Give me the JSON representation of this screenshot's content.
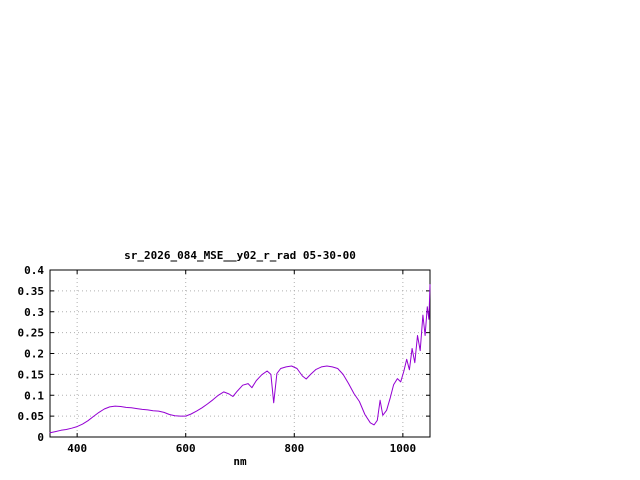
{
  "window": {
    "background": "#ffffff"
  },
  "chart_data": {
    "type": "line",
    "title": "sr_2026_084_MSE__y02_r_rad 05-30-00",
    "xlabel": "nm",
    "ylabel": "",
    "xlim": [
      350,
      1050
    ],
    "ylim": [
      0,
      0.4
    ],
    "xtick_values": [
      400,
      600,
      800,
      1000
    ],
    "xtick_labels": [
      "400",
      "600",
      "800",
      "1000"
    ],
    "ytick_values": [
      0,
      0.05,
      0.1,
      0.15,
      0.2,
      0.25,
      0.3,
      0.35,
      0.4
    ],
    "ytick_labels": [
      "0",
      "0.05",
      "0.1",
      "0.15",
      "0.2",
      "0.25",
      "0.3",
      "0.35",
      "0.4"
    ],
    "grid": true,
    "legend": "none",
    "line_color": "#9400d3",
    "grid_color": "#b0b0b0",
    "axis_color": "#000000",
    "series": [
      {
        "name": "sr_2026_084_MSE__y02_r_rad",
        "points": [
          [
            350,
            0.01
          ],
          [
            360,
            0.013
          ],
          [
            370,
            0.016
          ],
          [
            380,
            0.018
          ],
          [
            390,
            0.021
          ],
          [
            400,
            0.025
          ],
          [
            410,
            0.031
          ],
          [
            420,
            0.039
          ],
          [
            430,
            0.049
          ],
          [
            440,
            0.059
          ],
          [
            450,
            0.067
          ],
          [
            460,
            0.072
          ],
          [
            470,
            0.074
          ],
          [
            480,
            0.073
          ],
          [
            490,
            0.071
          ],
          [
            500,
            0.07
          ],
          [
            510,
            0.068
          ],
          [
            520,
            0.066
          ],
          [
            530,
            0.065
          ],
          [
            540,
            0.063
          ],
          [
            550,
            0.062
          ],
          [
            560,
            0.059
          ],
          [
            570,
            0.054
          ],
          [
            580,
            0.051
          ],
          [
            590,
            0.05
          ],
          [
            600,
            0.05
          ],
          [
            610,
            0.055
          ],
          [
            620,
            0.062
          ],
          [
            630,
            0.07
          ],
          [
            640,
            0.079
          ],
          [
            650,
            0.089
          ],
          [
            660,
            0.1
          ],
          [
            670,
            0.108
          ],
          [
            680,
            0.103
          ],
          [
            687,
            0.097
          ],
          [
            695,
            0.11
          ],
          [
            705,
            0.124
          ],
          [
            715,
            0.128
          ],
          [
            722,
            0.118
          ],
          [
            730,
            0.135
          ],
          [
            740,
            0.149
          ],
          [
            750,
            0.158
          ],
          [
            757,
            0.15
          ],
          [
            762,
            0.082
          ],
          [
            768,
            0.152
          ],
          [
            775,
            0.164
          ],
          [
            785,
            0.168
          ],
          [
            795,
            0.17
          ],
          [
            805,
            0.164
          ],
          [
            815,
            0.146
          ],
          [
            822,
            0.139
          ],
          [
            830,
            0.15
          ],
          [
            840,
            0.162
          ],
          [
            850,
            0.168
          ],
          [
            860,
            0.17
          ],
          [
            870,
            0.168
          ],
          [
            880,
            0.164
          ],
          [
            890,
            0.15
          ],
          [
            900,
            0.128
          ],
          [
            910,
            0.104
          ],
          [
            920,
            0.085
          ],
          [
            930,
            0.054
          ],
          [
            940,
            0.034
          ],
          [
            947,
            0.029
          ],
          [
            953,
            0.04
          ],
          [
            958,
            0.088
          ],
          [
            963,
            0.052
          ],
          [
            970,
            0.064
          ],
          [
            977,
            0.095
          ],
          [
            983,
            0.125
          ],
          [
            990,
            0.14
          ],
          [
            996,
            0.132
          ],
          [
            1002,
            0.158
          ],
          [
            1007,
            0.186
          ],
          [
            1012,
            0.161
          ],
          [
            1017,
            0.212
          ],
          [
            1022,
            0.178
          ],
          [
            1027,
            0.243
          ],
          [
            1032,
            0.207
          ],
          [
            1037,
            0.292
          ],
          [
            1041,
            0.243
          ],
          [
            1045,
            0.312
          ],
          [
            1048,
            0.282
          ],
          [
            1050,
            0.365
          ]
        ]
      }
    ]
  }
}
